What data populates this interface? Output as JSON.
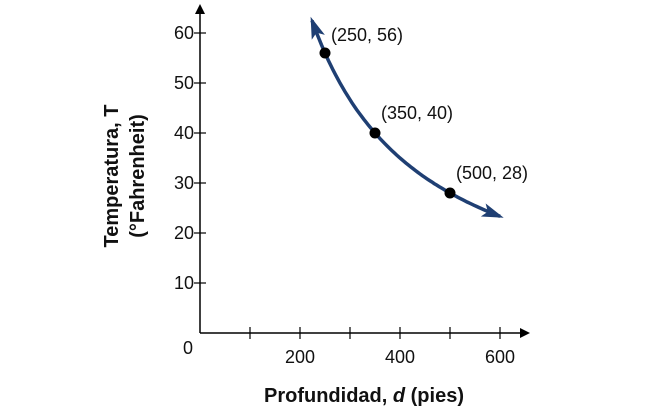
{
  "chart_data": {
    "type": "line",
    "xlabel_main": "Profundidad, ",
    "xlabel_var": "d",
    "xlabel_unit": " (pies)",
    "ylabel_line1": "Temperatura, T",
    "ylabel_line2": "(°Fahrenheit)",
    "origin_label": "0",
    "xlim": [
      0,
      640
    ],
    "ylim": [
      0,
      66
    ],
    "x_ticks": [
      100,
      200,
      300,
      400,
      500,
      600
    ],
    "x_tick_labels": [
      {
        "value": 200,
        "label": "200"
      },
      {
        "value": 400,
        "label": "400"
      },
      {
        "value": 600,
        "label": "600"
      }
    ],
    "y_ticks": [
      10,
      20,
      30,
      40,
      50,
      60
    ],
    "y_tick_labels": [
      "10",
      "20",
      "30",
      "40",
      "50",
      "60"
    ],
    "curve": {
      "equation": "T = 14000 / d",
      "domain": [
        224,
        600
      ],
      "arrows": "both",
      "color": "#1f3f73"
    },
    "points": [
      {
        "x": 250,
        "y": 56,
        "label": "(250, 56)"
      },
      {
        "x": 350,
        "y": 40,
        "label": "(350, 40)"
      },
      {
        "x": 500,
        "y": 28,
        "label": "(500, 28)"
      }
    ],
    "grid": false
  }
}
